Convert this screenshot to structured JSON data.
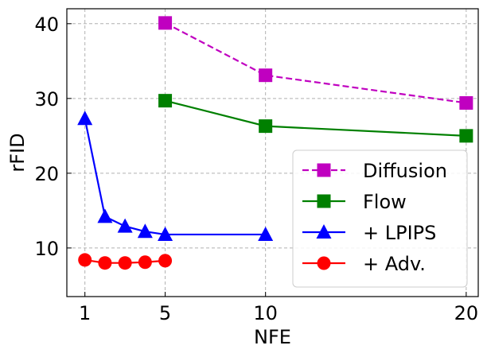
{
  "chart_data": {
    "type": "line",
    "xlabel": "NFE",
    "ylabel": "rFID",
    "xlim": [
      0.1,
      20.6
    ],
    "ylim": [
      3.5,
      42
    ],
    "x_ticks": [
      1,
      5,
      10,
      20
    ],
    "y_ticks": [
      10,
      20,
      30,
      40
    ],
    "grid": true,
    "legend_position": "lower-right",
    "series": [
      {
        "name": "Diffusion",
        "color": "#c000c0",
        "dash": true,
        "marker": "square",
        "x": [
          5,
          10,
          20
        ],
        "y": [
          40.1,
          33.1,
          29.4
        ]
      },
      {
        "name": "Flow",
        "color": "#008000",
        "dash": false,
        "marker": "square",
        "x": [
          5,
          10,
          20
        ],
        "y": [
          29.7,
          26.3,
          25.0
        ]
      },
      {
        "name": "+ LPIPS",
        "color": "#0000ff",
        "dash": false,
        "marker": "triangle",
        "x": [
          1,
          2,
          3,
          4,
          5,
          10
        ],
        "y": [
          27.3,
          14.2,
          12.9,
          12.2,
          11.8,
          11.8
        ]
      },
      {
        "name": "+ Adv.",
        "color": "#ff0000",
        "dash": false,
        "marker": "circle",
        "x": [
          1,
          2,
          3,
          4,
          5
        ],
        "y": [
          8.4,
          8.0,
          8.0,
          8.1,
          8.3
        ]
      }
    ]
  }
}
